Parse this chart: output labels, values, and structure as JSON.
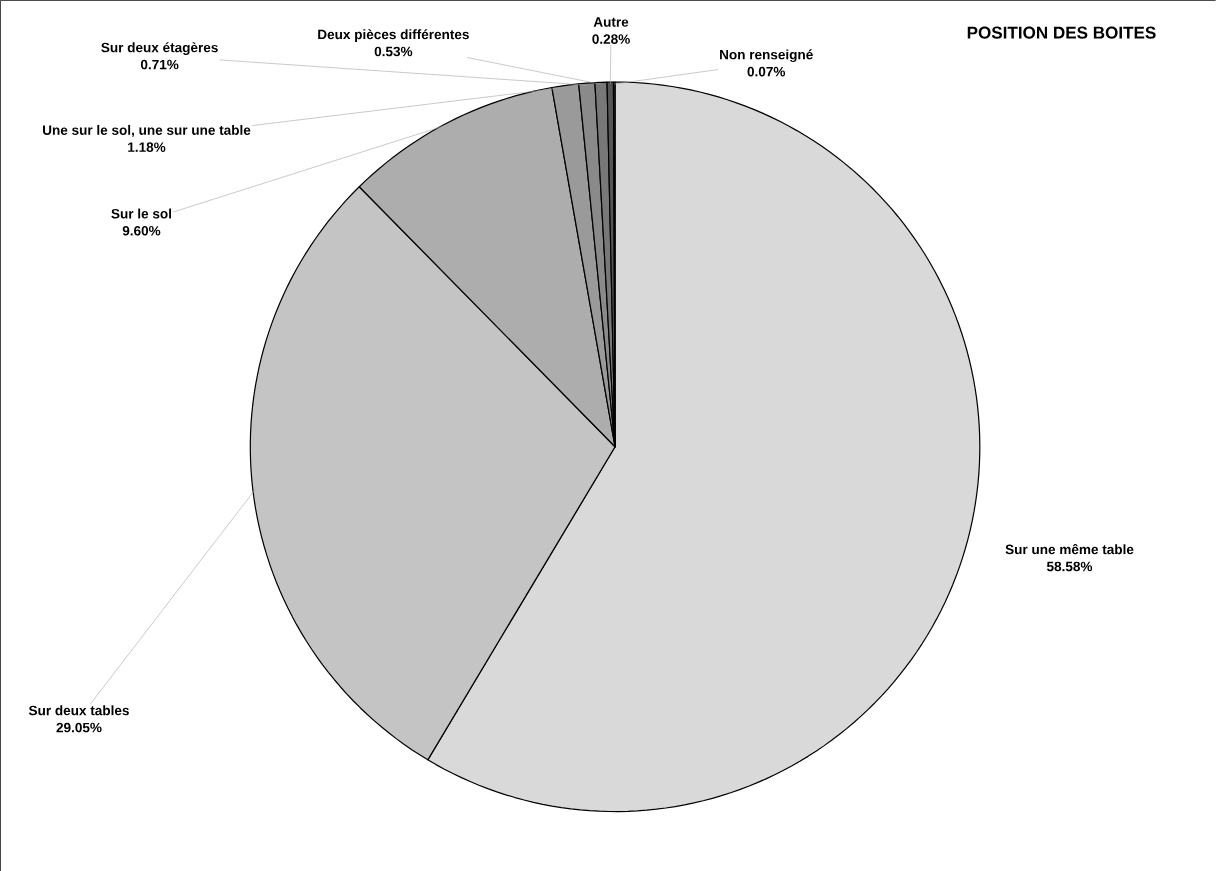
{
  "chart_data": {
    "type": "pie",
    "title": "POSITION DES BOITES",
    "categories": [
      "Sur une même table",
      "Sur deux tables",
      "Sur le sol",
      "Une sur le sol, une sur une table",
      "Sur deux étagères",
      "Deux pièces différentes",
      "Autre",
      "Non renseigné"
    ],
    "values": [
      58.58,
      29.05,
      9.6,
      1.18,
      0.71,
      0.53,
      0.28,
      0.07
    ],
    "value_labels": [
      "58.58%",
      "29.05%",
      "9.60%",
      "1.18%",
      "0.71%",
      "0.53%",
      "0.28%",
      "0.07%"
    ],
    "colors": [
      "#d9d9d9",
      "#c4c4c4",
      "#adadad",
      "#9a9a9a",
      "#8a8a8a",
      "#787878",
      "#555555",
      "#3a3a3a"
    ]
  }
}
